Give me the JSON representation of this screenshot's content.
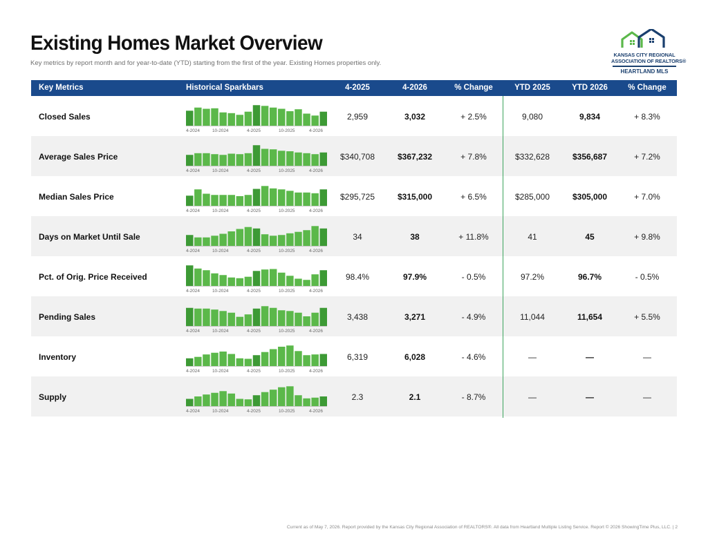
{
  "header": {
    "title": "Existing Homes Market Overview",
    "subtitle": "Key metrics by report month and for year-to-date (YTD) starting from the first of the year. Existing Homes properties only."
  },
  "logo": {
    "line1": "KANSAS CITY REGIONAL",
    "line2": "ASSOCIATION OF REALTORS®",
    "sub": "HEARTLAND MLS",
    "colors": {
      "navy": "#1a3f6e",
      "green": "#5bb84a"
    }
  },
  "table": {
    "header_color": "#1a4a8c",
    "columns": [
      "Key Metrics",
      "Historical Sparkbars",
      "4-2025",
      "4-2026",
      "% Change",
      "YTD 2025",
      "YTD 2026",
      "% Change"
    ],
    "spark_labels": [
      "4-2024",
      "10-2024",
      "4-2025",
      "10-2025",
      "4-2026"
    ],
    "rows": [
      {
        "metric": "Closed Sales",
        "prev": "2,959",
        "curr": "3,032",
        "change": "+ 2.5%",
        "ytd_prev": "9,080",
        "ytd_curr": "9,834",
        "ytd_change": "+ 8.3%",
        "bars": [
          0.62,
          0.75,
          0.7,
          0.72,
          0.55,
          0.52,
          0.45,
          0.58,
          0.85,
          0.82,
          0.75,
          0.7,
          0.6,
          0.68,
          0.5,
          0.42,
          0.58
        ]
      },
      {
        "metric": "Average Sales Price",
        "prev": "$340,708",
        "curr": "$367,232",
        "change": "+ 7.8%",
        "ytd_prev": "$332,628",
        "ytd_curr": "$356,687",
        "ytd_change": "+ 7.2%",
        "bars": [
          0.45,
          0.52,
          0.52,
          0.48,
          0.45,
          0.5,
          0.48,
          0.52,
          0.85,
          0.7,
          0.68,
          0.62,
          0.6,
          0.55,
          0.52,
          0.48,
          0.55
        ]
      },
      {
        "metric": "Median Sales Price",
        "prev": "$295,725",
        "curr": "$315,000",
        "change": "+ 6.5%",
        "ytd_prev": "$285,000",
        "ytd_curr": "$305,000",
        "ytd_change": "+ 7.0%",
        "bars": [
          0.42,
          0.68,
          0.5,
          0.45,
          0.45,
          0.45,
          0.4,
          0.45,
          0.7,
          0.82,
          0.72,
          0.68,
          0.62,
          0.55,
          0.55,
          0.52,
          0.68
        ]
      },
      {
        "metric": "Days on Market Until Sale",
        "prev": "34",
        "curr": "38",
        "change": "+ 11.8%",
        "ytd_prev": "41",
        "ytd_curr": "45",
        "ytd_change": "+ 9.8%",
        "bars": [
          0.45,
          0.35,
          0.35,
          0.42,
          0.5,
          0.6,
          0.7,
          0.78,
          0.72,
          0.48,
          0.42,
          0.45,
          0.52,
          0.58,
          0.65,
          0.82,
          0.72
        ]
      },
      {
        "metric": "Pct. of Orig. Price Received",
        "prev": "98.4%",
        "curr": "97.9%",
        "change": "- 0.5%",
        "ytd_prev": "97.2%",
        "ytd_curr": "96.7%",
        "ytd_change": "- 0.5%",
        "bars": [
          0.85,
          0.72,
          0.65,
          0.52,
          0.45,
          0.35,
          0.32,
          0.38,
          0.62,
          0.68,
          0.7,
          0.55,
          0.42,
          0.3,
          0.25,
          0.48,
          0.65
        ]
      },
      {
        "metric": "Pending Sales",
        "prev": "3,438",
        "curr": "3,271",
        "change": "- 4.9%",
        "ytd_prev": "11,044",
        "ytd_curr": "11,654",
        "ytd_change": "+ 5.5%",
        "bars": [
          0.75,
          0.72,
          0.72,
          0.68,
          0.62,
          0.55,
          0.38,
          0.48,
          0.72,
          0.82,
          0.75,
          0.65,
          0.62,
          0.55,
          0.4,
          0.55,
          0.75
        ]
      },
      {
        "metric": "Inventory",
        "prev": "6,319",
        "curr": "6,028",
        "change": "- 4.6%",
        "ytd_prev": "—",
        "ytd_curr": "—",
        "ytd_change": "—",
        "bars": [
          0.32,
          0.38,
          0.48,
          0.55,
          0.6,
          0.5,
          0.32,
          0.3,
          0.45,
          0.58,
          0.7,
          0.8,
          0.85,
          0.62,
          0.45,
          0.48,
          0.5
        ]
      },
      {
        "metric": "Supply",
        "prev": "2.3",
        "curr": "2.1",
        "change": "- 8.7%",
        "ytd_prev": "—",
        "ytd_curr": "—",
        "ytd_change": "—",
        "bars": [
          0.3,
          0.4,
          0.48,
          0.55,
          0.62,
          0.52,
          0.3,
          0.28,
          0.45,
          0.58,
          0.68,
          0.78,
          0.82,
          0.45,
          0.32,
          0.35,
          0.4
        ]
      }
    ]
  },
  "footer": "Current as of May 7, 2026. Report provided by the Kansas City Regional Association of REALTORS®. All data from Heartland Multiple Listing Service. Report © 2026 ShowingTime Plus, LLC.  |  2",
  "colors": {
    "bar": "#5bb84a",
    "bar_dark": "#3d9a35",
    "shade": "#f1f1f1",
    "divider": "#3aa35b"
  }
}
